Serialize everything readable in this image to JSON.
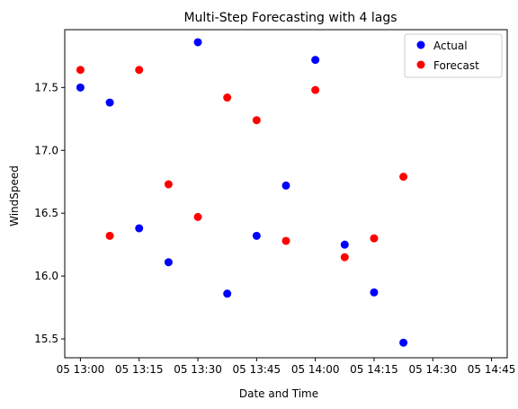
{
  "chart_data": {
    "type": "scatter",
    "title": "Multi-Step Forecasting with 4 lags",
    "xlabel": "Date and Time",
    "ylabel": "WindSpeed",
    "x_tick_labels": [
      "05 13:00",
      "05 13:15",
      "05 13:30",
      "05 13:45",
      "05 14:00",
      "05 14:15",
      "05 14:30",
      "05 14:45"
    ],
    "x_tick_positions": [
      "13:00",
      "13:15",
      "13:30",
      "13:45",
      "14:00",
      "14:15",
      "14:30",
      "14:45"
    ],
    "y_ticks": [
      15.5,
      16.0,
      16.5,
      17.0,
      17.5
    ],
    "y_tick_labels": [
      "15.5",
      "16.0",
      "16.5",
      "17.0",
      "17.5"
    ],
    "xlim": [
      "12:56",
      "14:49"
    ],
    "ylim": [
      15.35,
      17.96
    ],
    "grid": false,
    "legend_position": "upper right",
    "series": [
      {
        "name": "Actual",
        "color": "#0000ff",
        "points": [
          [
            "13:00",
            17.5
          ],
          [
            "13:07.5",
            17.38
          ],
          [
            "13:15",
            16.38
          ],
          [
            "13:22.5",
            16.11
          ],
          [
            "13:30",
            17.86
          ],
          [
            "13:37.5",
            15.86
          ],
          [
            "13:45",
            16.32
          ],
          [
            "13:52.5",
            16.72
          ],
          [
            "14:00",
            17.72
          ],
          [
            "14:07.5",
            16.25
          ],
          [
            "14:15",
            15.87
          ],
          [
            "14:22.5",
            15.47
          ]
        ]
      },
      {
        "name": "Forecast",
        "color": "#ff0000",
        "points": [
          [
            "13:00",
            17.64
          ],
          [
            "13:07.5",
            16.32
          ],
          [
            "13:15",
            17.64
          ],
          [
            "13:22.5",
            16.73
          ],
          [
            "13:30",
            16.47
          ],
          [
            "13:37.5",
            17.42
          ],
          [
            "13:45",
            17.24
          ],
          [
            "13:52.5",
            16.28
          ],
          [
            "14:00",
            17.48
          ],
          [
            "14:07.5",
            16.15
          ],
          [
            "14:15",
            16.3
          ],
          [
            "14:22.5",
            16.79
          ]
        ]
      }
    ]
  }
}
